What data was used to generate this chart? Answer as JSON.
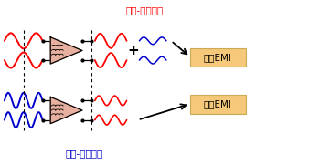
{
  "bg_color": "#ffffff",
  "title_top": "差模-共模轉換",
  "title_bottom": "共模-差模轉換",
  "title_top_color": "#ff0000",
  "title_bottom_color": "#0000cc",
  "box1_label": "產生EMI",
  "box2_label": "抑制EMI",
  "box_color": "#f5c87a",
  "box_edge_color": "#ccaa55",
  "box_text_color": "#000000",
  "red": "#ff0000",
  "blue": "#0000cc",
  "pink_fill": "#e8b0a0",
  "black": "#000000"
}
